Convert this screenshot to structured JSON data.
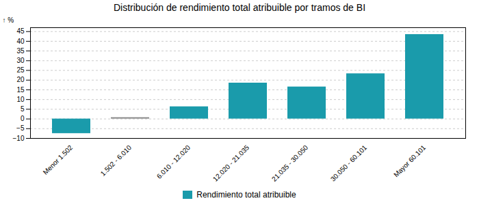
{
  "chart_data": {
    "type": "bar",
    "title": "Distribución de rendimiento total atribuible por tramos de BI",
    "ylabel": "%",
    "categories": [
      "Menor 1.502",
      "1.502 - 6.010",
      "6.010 - 12.020",
      "12.020 - 21.035",
      "21.035 - 30.050",
      "30.050 - 60.101",
      "Mayor 60.101"
    ],
    "series": [
      {
        "name": "Rendimiento total atribuible",
        "color": "#1a9bab",
        "colors": [
          "#1a9bab",
          "#888888",
          "#1a9bab",
          "#1a9bab",
          "#1a9bab",
          "#1a9bab",
          "#1a9bab"
        ],
        "values": [
          -7.5,
          0.7,
          6.3,
          18.5,
          16.5,
          23.3,
          43.5
        ]
      }
    ],
    "ylim": [
      -10,
      47
    ],
    "yticks": [
      -10,
      -5,
      0,
      5,
      10,
      15,
      20,
      25,
      30,
      35,
      40,
      45
    ],
    "grid": true,
    "legend": "bottom"
  }
}
